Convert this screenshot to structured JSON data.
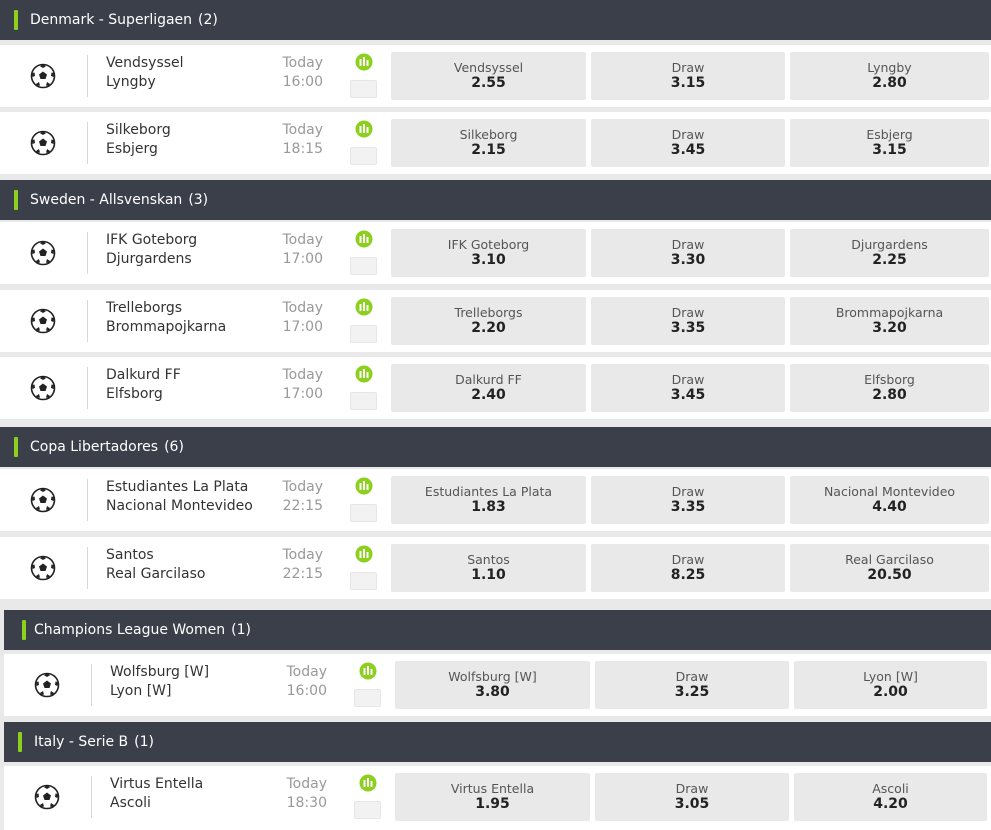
{
  "colors": {
    "header_bg": "#3b3f4a",
    "accent": "#8ccf1c",
    "odds_bg": "#e9e9e9",
    "stats_icon": "#8ccf1c"
  },
  "icons": {
    "sport": "soccer-ball-icon",
    "stats": "bar-chart-icon"
  },
  "draw_label": "Draw",
  "leagues": [
    {
      "name": "Denmark - Superligaen",
      "count": "(2)",
      "matches": [
        {
          "home": "Vendsyssel",
          "away": "Lyngby",
          "day": "Today",
          "time": "16:00",
          "odds": [
            {
              "label": "Vendsyssel",
              "price": "2.55"
            },
            {
              "label": "Draw",
              "price": "3.15"
            },
            {
              "label": "Lyngby",
              "price": "2.80"
            }
          ]
        },
        {
          "home": "Silkeborg",
          "away": "Esbjerg",
          "day": "Today",
          "time": "18:15",
          "odds": [
            {
              "label": "Silkeborg",
              "price": "2.15"
            },
            {
              "label": "Draw",
              "price": "3.45"
            },
            {
              "label": "Esbjerg",
              "price": "3.15"
            }
          ]
        }
      ]
    },
    {
      "name": "Sweden - Allsvenskan",
      "count": "(3)",
      "matches": [
        {
          "home": "IFK Goteborg",
          "away": "Djurgardens",
          "day": "Today",
          "time": "17:00",
          "odds": [
            {
              "label": "IFK Goteborg",
              "price": "3.10"
            },
            {
              "label": "Draw",
              "price": "3.30"
            },
            {
              "label": "Djurgardens",
              "price": "2.25"
            }
          ]
        },
        {
          "home": "Trelleborgs",
          "away": "Brommapojkarna",
          "day": "Today",
          "time": "17:00",
          "odds": [
            {
              "label": "Trelleborgs",
              "price": "2.20"
            },
            {
              "label": "Draw",
              "price": "3.35"
            },
            {
              "label": "Brommapojkarna",
              "price": "3.20"
            }
          ]
        },
        {
          "home": "Dalkurd FF",
          "away": "Elfsborg",
          "day": "Today",
          "time": "17:00",
          "odds": [
            {
              "label": "Dalkurd FF",
              "price": "2.40"
            },
            {
              "label": "Draw",
              "price": "3.45"
            },
            {
              "label": "Elfsborg",
              "price": "2.80"
            }
          ]
        }
      ]
    },
    {
      "name": "Copa Libertadores",
      "count": "(6)",
      "matches": [
        {
          "home": "Estudiantes La Plata",
          "away": "Nacional Montevideo",
          "day": "Today",
          "time": "22:15",
          "odds": [
            {
              "label": "Estudiantes La Plata",
              "price": "1.83"
            },
            {
              "label": "Draw",
              "price": "3.35"
            },
            {
              "label": "Nacional Montevideo",
              "price": "4.40"
            }
          ]
        },
        {
          "home": "Santos",
          "away": "Real Garcilaso",
          "day": "Today",
          "time": "22:15",
          "odds": [
            {
              "label": "Santos",
              "price": "1.10"
            },
            {
              "label": "Draw",
              "price": "8.25"
            },
            {
              "label": "Real Garcilaso",
              "price": "20.50"
            }
          ]
        }
      ]
    },
    {
      "name": "Champions League Women",
      "count": "(1)",
      "matches": [
        {
          "home": "Wolfsburg [W]",
          "away": "Lyon [W]",
          "day": "Today",
          "time": "16:00",
          "odds": [
            {
              "label": "Wolfsburg [W]",
              "price": "3.80"
            },
            {
              "label": "Draw",
              "price": "3.25"
            },
            {
              "label": "Lyon [W]",
              "price": "2.00"
            }
          ]
        }
      ]
    },
    {
      "name": "Italy - Serie B",
      "count": "(1)",
      "matches": [
        {
          "home": "Virtus Entella",
          "away": "Ascoli",
          "day": "Today",
          "time": "18:30",
          "odds": [
            {
              "label": "Virtus Entella",
              "price": "1.95"
            },
            {
              "label": "Draw",
              "price": "3.05"
            },
            {
              "label": "Ascoli",
              "price": "4.20"
            }
          ]
        }
      ]
    }
  ]
}
